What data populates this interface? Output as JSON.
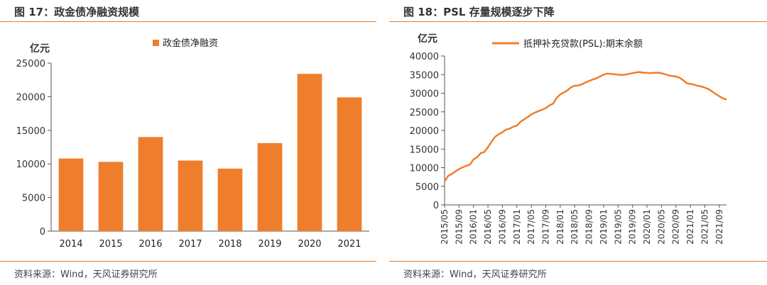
{
  "charts": [
    {
      "figure_title": "图 17：政金债净融资规模",
      "source": "资料来源：Wind，天风证券研究所",
      "colors": {
        "bar": "#ef7e2c",
        "rule": "#e07b2e"
      },
      "chart_data": {
        "type": "bar",
        "unit_label": "亿元",
        "categories": [
          "2014",
          "2015",
          "2016",
          "2017",
          "2018",
          "2019",
          "2020",
          "2021"
        ],
        "series": [
          {
            "name": "政金债净融资",
            "values": [
              10800,
              10300,
              14000,
              10500,
              9300,
              13100,
              23400,
              19900
            ]
          }
        ],
        "ylim": [
          0,
          25000
        ],
        "yticks": [
          0,
          5000,
          10000,
          15000,
          20000,
          25000
        ],
        "legend": "top-center",
        "grid": false
      }
    },
    {
      "figure_title": "图 18：PSL 存量规模逐步下降",
      "source": "资料来源：Wind，天风证券研究所",
      "colors": {
        "line": "#ef7e2c"
      },
      "chart_data": {
        "type": "line",
        "unit_label": "亿元",
        "series": [
          {
            "name": "抵押补充贷款(PSL):期末余额",
            "x": [
              "2015/05",
              "2015/06",
              "2015/07",
              "2015/08",
              "2015/09",
              "2015/10",
              "2015/11",
              "2015/12",
              "2016/01",
              "2016/02",
              "2016/03",
              "2016/04",
              "2016/05",
              "2016/06",
              "2016/07",
              "2016/08",
              "2016/09",
              "2016/10",
              "2016/11",
              "2016/12",
              "2017/01",
              "2017/02",
              "2017/03",
              "2017/04",
              "2017/05",
              "2017/06",
              "2017/07",
              "2017/08",
              "2017/09",
              "2017/10",
              "2017/11",
              "2017/12",
              "2018/01",
              "2018/02",
              "2018/03",
              "2018/04",
              "2018/05",
              "2018/06",
              "2018/07",
              "2018/08",
              "2018/09",
              "2018/10",
              "2018/11",
              "2018/12",
              "2019/01",
              "2019/02",
              "2019/03",
              "2019/04",
              "2019/05",
              "2019/06",
              "2019/07",
              "2019/08",
              "2019/09",
              "2019/10",
              "2019/11",
              "2019/12",
              "2020/01",
              "2020/02",
              "2020/03",
              "2020/04",
              "2020/05",
              "2020/06",
              "2020/07",
              "2020/08",
              "2020/09",
              "2020/10",
              "2020/11",
              "2020/12",
              "2021/01",
              "2021/02",
              "2021/03",
              "2021/04",
              "2021/05",
              "2021/06",
              "2021/07",
              "2021/08",
              "2021/09",
              "2021/10",
              "2021/11"
            ],
            "values": [
              6300,
              7800,
              8300,
              9000,
              9600,
              10100,
              10500,
              10800,
              12200,
              12800,
              13900,
              14200,
              15500,
              17000,
              18300,
              19000,
              19500,
              20200,
              20500,
              21000,
              21300,
              22300,
              23000,
              23600,
              24300,
              24800,
              25200,
              25600,
              26000,
              26700,
              27200,
              28700,
              29700,
              30200,
              30800,
              31600,
              32000,
              32100,
              32400,
              32900,
              33300,
              33700,
              34000,
              34500,
              35000,
              35300,
              35200,
              35100,
              35000,
              34900,
              35000,
              35200,
              35400,
              35600,
              35700,
              35500,
              35500,
              35400,
              35500,
              35500,
              35400,
              35100,
              34800,
              34600,
              34500,
              34200,
              33500,
              32700,
              32500,
              32300,
              32000,
              31800,
              31500,
              31100,
              30500,
              29800,
              29200,
              28600,
              28300
            ]
          }
        ],
        "xtick_labels": [
          "2015/05",
          "2015/09",
          "2016/01",
          "2016/05",
          "2016/09",
          "2017/01",
          "2017/05",
          "2017/09",
          "2018/01",
          "2018/05",
          "2018/09",
          "2019/01",
          "2019/05",
          "2019/09",
          "2020/01",
          "2020/05",
          "2020/09",
          "2021/01",
          "2021/05",
          "2021/09"
        ],
        "ylim": [
          0,
          40000
        ],
        "yticks": [
          0,
          5000,
          10000,
          15000,
          20000,
          25000,
          30000,
          35000,
          40000
        ],
        "legend": "top-center",
        "grid": false
      }
    }
  ]
}
